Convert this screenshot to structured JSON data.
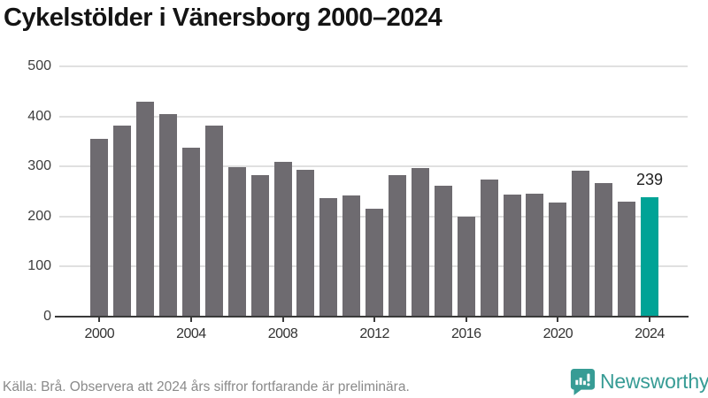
{
  "title": "Cykelstölder i Vänersborg 2000–2024",
  "chart_data": {
    "type": "bar",
    "title": "Cykelstölder i Vänersborg 2000–2024",
    "xlabel": "",
    "ylabel": "",
    "categories": [
      "2000",
      "2001",
      "2002",
      "2003",
      "2004",
      "2005",
      "2006",
      "2007",
      "2008",
      "2009",
      "2010",
      "2011",
      "2012",
      "2013",
      "2014",
      "2015",
      "2016",
      "2017",
      "2018",
      "2019",
      "2020",
      "2021",
      "2022",
      "2023",
      "2024"
    ],
    "values": [
      356,
      381,
      429,
      405,
      337,
      381,
      298,
      282,
      309,
      294,
      237,
      242,
      215,
      282,
      296,
      262,
      199,
      273,
      243,
      246,
      228,
      291,
      267,
      229,
      239
    ],
    "ylim": [
      0,
      500
    ],
    "yticks": [
      0,
      100,
      200,
      300,
      400,
      500
    ],
    "xtick_labels": [
      "2000",
      "2004",
      "2008",
      "2012",
      "2016",
      "2020",
      "2024"
    ],
    "grid": "horizontal-only",
    "legend": "none",
    "highlight_index": 24,
    "highlight_label": "239",
    "bar_color": "#6e6b70",
    "highlight_color": "#00a396"
  },
  "footer": {
    "source_note": "Källa: Brå. Observera att 2024 års siffror fortfarande är preliminära.",
    "logo_text": "Newsworthy"
  },
  "colors": {
    "accent_teal": "#00a396",
    "bar_gray": "#6e6b70",
    "logo_teal": "#379c95",
    "gridline": "#e0e0e0",
    "axis_line": "#3a3a3a",
    "text_dark": "#141414",
    "text_muted": "#8a8a8a"
  }
}
